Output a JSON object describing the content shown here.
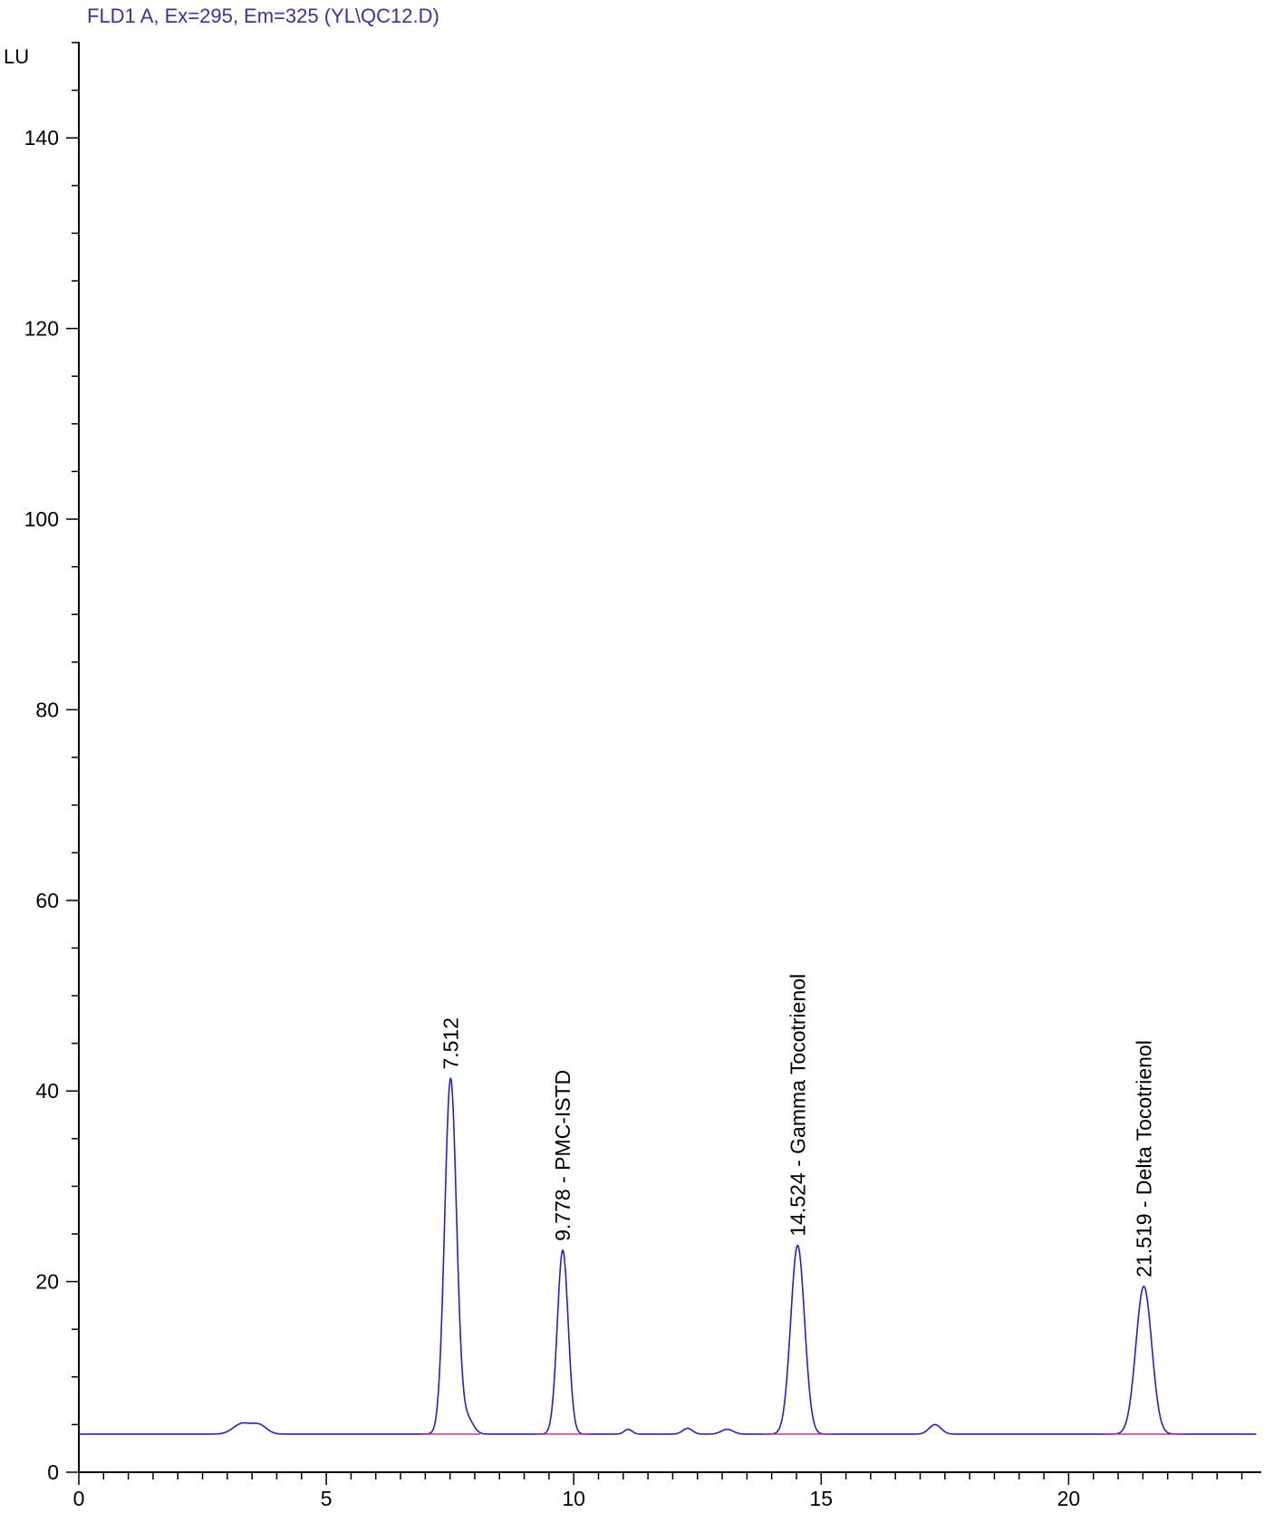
{
  "chart_data": {
    "type": "line",
    "title": "FLD1 A, Ex=295, Em=325 (YL\\QC12.D)",
    "ylabel": "LU",
    "xlabel": "",
    "xlim": [
      0,
      23.8
    ],
    "ylim": [
      0,
      150
    ],
    "x_ticks": [
      0,
      5,
      10,
      15,
      20
    ],
    "y_ticks": [
      0,
      20,
      40,
      60,
      80,
      100,
      120,
      140
    ],
    "baseline_level": 4,
    "grid": false,
    "colors": {
      "title": "#3333aa",
      "signal": "#2222cc",
      "baseline": "#cc2288"
    },
    "peaks": [
      {
        "rt": 7.512,
        "height": 41.3,
        "width": 0.12,
        "label": "7.512"
      },
      {
        "rt": 9.778,
        "height": 23.3,
        "width": 0.11,
        "label": "9.778 -  PMC-ISTD"
      },
      {
        "rt": 14.524,
        "height": 23.8,
        "width": 0.14,
        "label": "14.524 -  Gamma Tocotrienol"
      },
      {
        "rt": 21.519,
        "height": 19.5,
        "width": 0.16,
        "label": "21.519 -  Delta Tocotrienol"
      }
    ],
    "minor_peaks": [
      {
        "rt": 3.3,
        "height": 5.1,
        "width": 0.18
      },
      {
        "rt": 3.65,
        "height": 4.9,
        "width": 0.15
      },
      {
        "rt": 7.85,
        "height": 5.6,
        "width": 0.12
      },
      {
        "rt": 11.1,
        "height": 4.5,
        "width": 0.08
      },
      {
        "rt": 12.3,
        "height": 4.6,
        "width": 0.1
      },
      {
        "rt": 13.1,
        "height": 4.5,
        "width": 0.12
      },
      {
        "rt": 17.3,
        "height": 5.0,
        "width": 0.12
      }
    ]
  }
}
